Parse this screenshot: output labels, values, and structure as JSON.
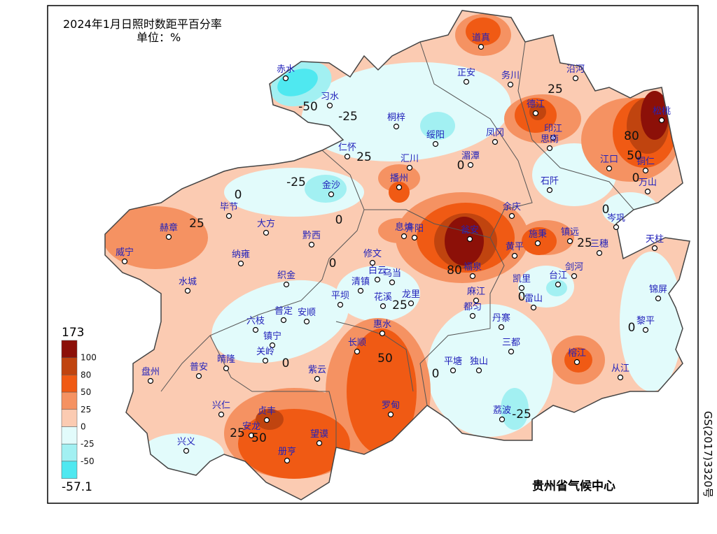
{
  "title": "2024年1月日照时数距平百分率",
  "unit": "单位：%",
  "stations": [
    "道真",
    "正安",
    "务川",
    "沿河",
    "赤水",
    "习水",
    "桐梓",
    "绥阳",
    "凤冈",
    "德江",
    "印江",
    "松桃",
    "思南",
    "江口",
    "铜仁",
    "万山",
    "石阡",
    "仁怀",
    "汇川",
    "湄潭",
    "金沙",
    "播州",
    "毕节",
    "大方",
    "黔西",
    "赫章",
    "威宁",
    "纳雍",
    "织金",
    "息烽",
    "开阳",
    "修文",
    "白云",
    "乌当",
    "清镇",
    "花溪",
    "龙里",
    "瓮安",
    "余庆",
    "施秉",
    "镇远",
    "岑巩",
    "三穗",
    "黄平",
    "天柱",
    "福泉",
    "麻江",
    "凯里",
    "台江",
    "剑河",
    "雷山",
    "锦屏",
    "都匀",
    "丹寨",
    "黎平",
    "三都",
    "榕江",
    "从江",
    "平塘",
    "独山",
    "荔波",
    "惠水",
    "长顺",
    "罗甸",
    "平坝",
    "普定",
    "安顺",
    "六枝",
    "镇宁",
    "关岭",
    "紫云",
    "晴隆",
    "普安",
    "盘州",
    "兴仁",
    "贞丰",
    "安龙",
    "望谟",
    "册亨",
    "兴义",
    "水城"
  ],
  "contour_labels": [
    -50,
    -25,
    25,
    -25,
    0,
    0,
    25,
    25,
    80,
    50,
    0,
    0,
    0,
    25,
    80,
    0,
    0,
    50,
    25,
    0,
    0,
    0,
    -25,
    25,
    50
  ],
  "legend": {
    "max": 173,
    "min": -57.1,
    "levels": [
      100,
      80,
      50,
      25,
      0,
      -25,
      -50
    ],
    "colors": [
      "#8c1008",
      "#c0440f",
      "#f05a14",
      "#f59262",
      "#fbcbb2",
      "#e2fbfb",
      "#a2f0f2",
      "#4fe8f0"
    ]
  },
  "credit": "贵州省气候中心",
  "approval": "GS(2017)3320号"
}
